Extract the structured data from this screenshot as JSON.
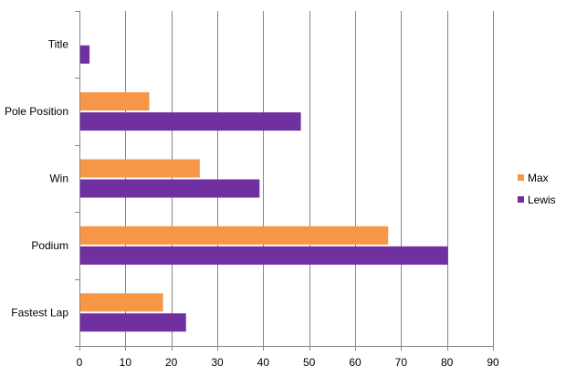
{
  "chart_data": {
    "type": "bar",
    "orientation": "horizontal",
    "title": "",
    "xlabel": "",
    "ylabel": "",
    "categories": [
      "Title",
      "Pole Position",
      "Win",
      "Podium",
      "Fastest Lap"
    ],
    "series": [
      {
        "name": "Max",
        "color": "#f79646",
        "values": [
          0,
          15,
          26,
          67,
          18
        ]
      },
      {
        "name": "Lewis",
        "color": "#7030a0",
        "values": [
          2,
          48,
          39,
          80,
          23
        ]
      }
    ],
    "xlim": [
      0,
      90
    ],
    "x_ticks": [
      0,
      10,
      20,
      30,
      40,
      50,
      60,
      70,
      80,
      90
    ],
    "x_tick_labels": [
      "0",
      "10",
      "20",
      "30",
      "40",
      "50",
      "60",
      "70",
      "80",
      "90"
    ],
    "gridlines": "vertical",
    "legend_position": "right"
  }
}
